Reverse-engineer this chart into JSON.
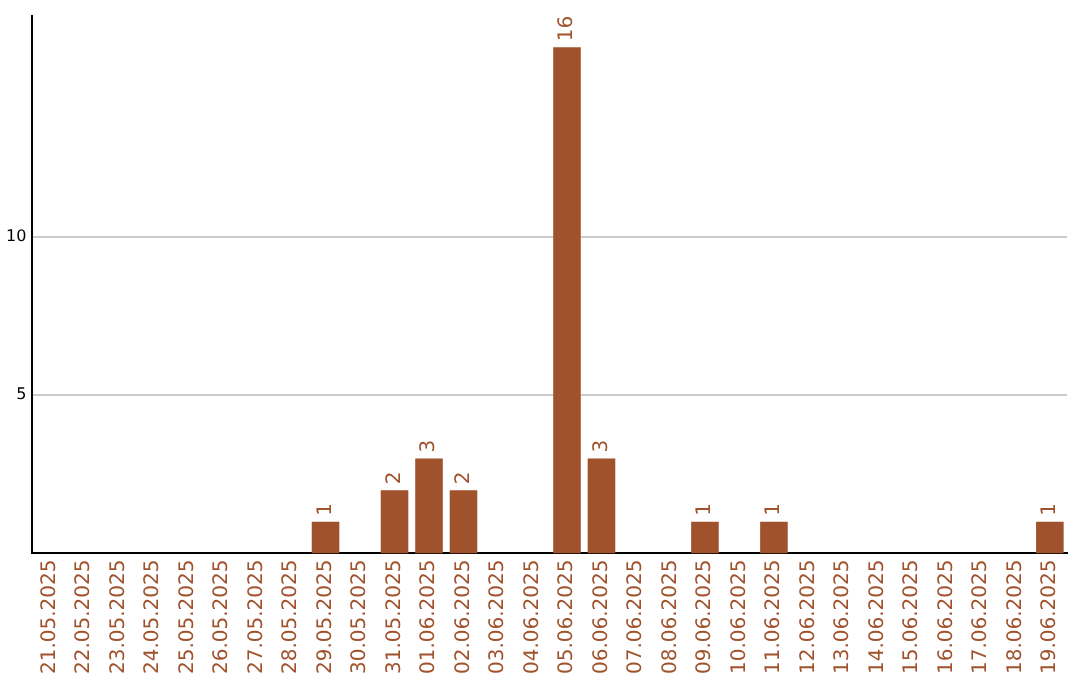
{
  "chart_data": {
    "type": "bar",
    "categories": [
      "21.05.2025",
      "22.05.2025",
      "23.05.2025",
      "24.05.2025",
      "25.05.2025",
      "26.05.2025",
      "27.05.2025",
      "28.05.2025",
      "29.05.2025",
      "30.05.2025",
      "31.05.2025",
      "01.06.2025",
      "02.06.2025",
      "03.06.2025",
      "04.06.2025",
      "05.06.2025",
      "06.06.2025",
      "07.06.2025",
      "08.06.2025",
      "09.06.2025",
      "10.06.2025",
      "11.06.2025",
      "12.06.2025",
      "13.06.2025",
      "14.06.2025",
      "15.06.2025",
      "16.06.2025",
      "17.06.2025",
      "18.06.2025",
      "19.06.2025"
    ],
    "values": [
      0,
      0,
      0,
      0,
      0,
      0,
      0,
      0,
      1,
      0,
      2,
      3,
      2,
      0,
      0,
      16,
      3,
      0,
      0,
      1,
      0,
      1,
      0,
      0,
      0,
      0,
      0,
      0,
      0,
      1
    ],
    "value_labels": [
      null,
      null,
      null,
      null,
      null,
      null,
      null,
      null,
      "1",
      null,
      "2",
      "3",
      "2",
      null,
      null,
      "16",
      "3",
      null,
      null,
      "1",
      null,
      "1",
      null,
      null,
      null,
      null,
      null,
      null,
      null,
      "1"
    ],
    "color": "#a0522d",
    "ylim": [
      0,
      17
    ],
    "yticks": [
      5,
      10
    ],
    "grid": "y",
    "legend": false
  }
}
